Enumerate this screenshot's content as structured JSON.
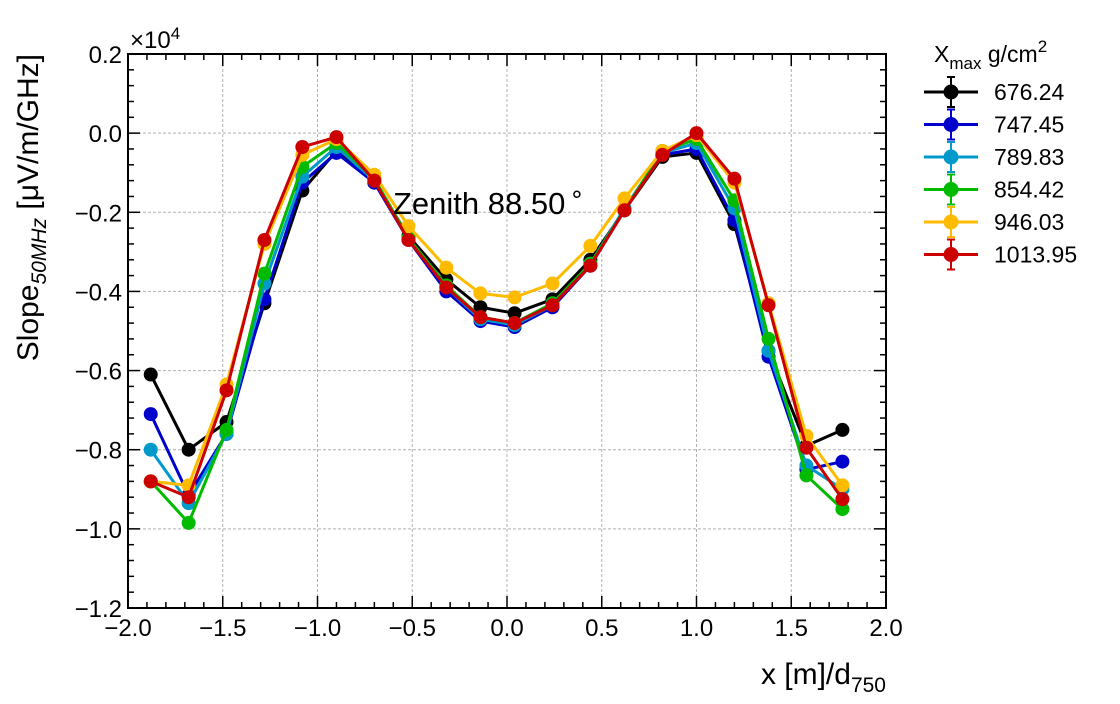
{
  "chart_data": {
    "type": "line",
    "annotation": "Zenith 88.50",
    "annotation_symbol": "∘",
    "xlabel_main": "x [m]/d",
    "xlabel_sub": "750",
    "ylabel_main": "Slope",
    "ylabel_sub": "50MHz",
    "ylabel_unit": " [μV/m/GHz]",
    "y_multiplier": "×10",
    "y_multiplier_exp": "4",
    "xlim": [
      -2.0,
      2.0
    ],
    "ylim": [
      -1.2,
      0.2
    ],
    "x_ticks": [
      -2.0,
      -1.5,
      -1.0,
      -0.5,
      0.0,
      0.5,
      1.0,
      1.5,
      2.0
    ],
    "x_tick_labels": [
      "−2.0",
      "−1.5",
      "−1.0",
      "−0.5",
      "0.0",
      "0.5",
      "1.0",
      "1.5",
      "2.0"
    ],
    "y_ticks": [
      -1.2,
      -1.0,
      -0.8,
      -0.6,
      -0.4,
      -0.2,
      0.0,
      0.2
    ],
    "y_tick_labels": [
      "−1.2",
      "−1.0",
      "−0.8",
      "−0.6",
      "−0.4",
      "−0.2",
      "0.0",
      "0.2"
    ],
    "grid": true,
    "legend_title_main": "X",
    "legend_title_sub": "max",
    "legend_title_unit": " g/cm",
    "legend_title_exp": "2",
    "legend_position": "outside-right",
    "x": [
      -1.88,
      -1.68,
      -1.48,
      -1.28,
      -1.08,
      -0.9,
      -0.7,
      -0.52,
      -0.32,
      -0.14,
      0.04,
      0.24,
      0.44,
      0.62,
      0.82,
      1.0,
      1.2,
      1.38,
      1.58,
      1.77
    ],
    "series": [
      {
        "name": "676.24",
        "color": "#000000",
        "values": [
          -0.61,
          -0.8,
          -0.73,
          -0.43,
          -0.145,
          -0.045,
          -0.125,
          -0.26,
          -0.37,
          -0.44,
          -0.455,
          -0.42,
          -0.32,
          -0.195,
          -0.06,
          -0.05,
          -0.23,
          -0.55,
          -0.79,
          -0.75
        ]
      },
      {
        "name": "747.45",
        "color": "#0000cc",
        "values": [
          -0.71,
          -0.915,
          -0.76,
          -0.42,
          -0.125,
          -0.05,
          -0.125,
          -0.27,
          -0.4,
          -0.475,
          -0.49,
          -0.44,
          -0.335,
          -0.195,
          -0.055,
          -0.04,
          -0.22,
          -0.565,
          -0.85,
          -0.83
        ]
      },
      {
        "name": "789.83",
        "color": "#0099cc",
        "values": [
          -0.8,
          -0.935,
          -0.76,
          -0.38,
          -0.11,
          -0.035,
          -0.12,
          -0.265,
          -0.39,
          -0.47,
          -0.485,
          -0.435,
          -0.33,
          -0.19,
          -0.05,
          -0.025,
          -0.19,
          -0.55,
          -0.84,
          -0.9
        ]
      },
      {
        "name": "854.42",
        "color": "#00bb00",
        "values": [
          -0.88,
          -0.985,
          -0.75,
          -0.355,
          -0.085,
          -0.025,
          -0.115,
          -0.265,
          -0.385,
          -0.465,
          -0.48,
          -0.43,
          -0.33,
          -0.195,
          -0.045,
          -0.015,
          -0.17,
          -0.52,
          -0.865,
          -0.95
        ]
      },
      {
        "name": "946.03",
        "color": "#ffbb00",
        "values": [
          -0.88,
          -0.89,
          -0.635,
          -0.28,
          -0.055,
          -0.015,
          -0.105,
          -0.235,
          -0.34,
          -0.405,
          -0.415,
          -0.38,
          -0.285,
          -0.165,
          -0.045,
          -0.005,
          -0.125,
          -0.43,
          -0.765,
          -0.89
        ]
      },
      {
        "name": "1013.95",
        "color": "#cc0000",
        "values": [
          -0.88,
          -0.92,
          -0.65,
          -0.27,
          -0.035,
          -0.01,
          -0.12,
          -0.27,
          -0.39,
          -0.465,
          -0.48,
          -0.435,
          -0.335,
          -0.195,
          -0.055,
          0.0,
          -0.115,
          -0.435,
          -0.795,
          -0.925
        ]
      }
    ]
  }
}
